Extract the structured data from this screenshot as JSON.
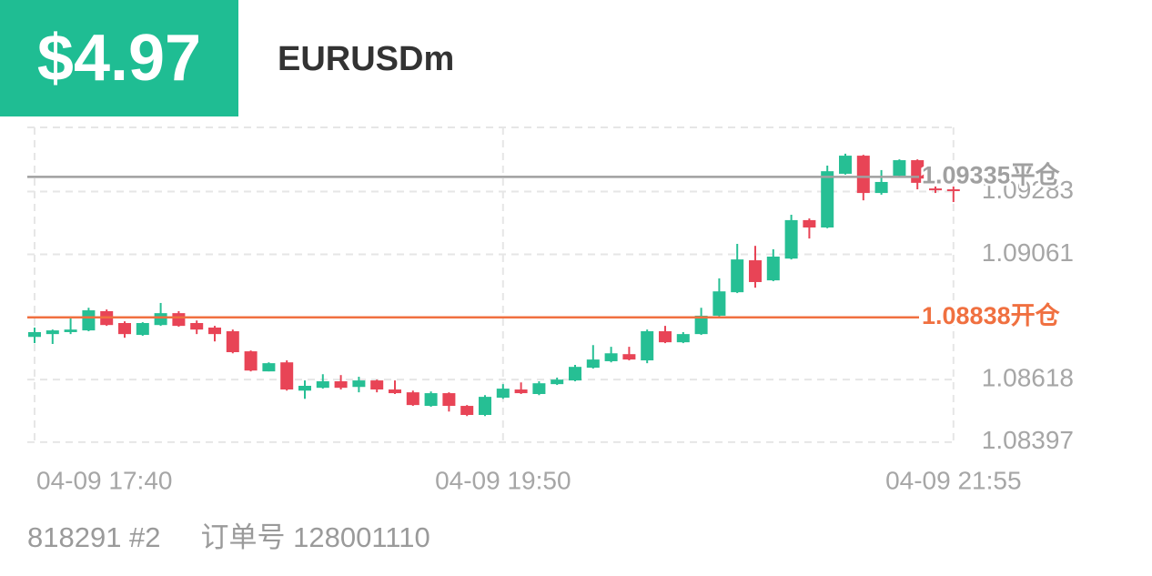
{
  "header": {
    "profit": "$4.97",
    "symbol": "EURUSDm"
  },
  "footer": {
    "account": "818291 #2",
    "order": "订单号 128001110"
  },
  "chart_data": {
    "type": "candlestick",
    "categories": [
      "04-09 17:40",
      null,
      null,
      null,
      null,
      null,
      null,
      null,
      null,
      null,
      null,
      null,
      null,
      null,
      null,
      null,
      null,
      null,
      null,
      null,
      null,
      null,
      null,
      null,
      null,
      null,
      "04-09 19:50",
      null,
      null,
      null,
      null,
      null,
      null,
      null,
      null,
      null,
      null,
      null,
      null,
      null,
      null,
      null,
      null,
      null,
      null,
      null,
      null,
      null,
      null,
      null,
      null,
      "04-09 21:55"
    ],
    "open": [
      1.08769,
      1.08779,
      1.08786,
      1.08792,
      1.0886,
      1.08818,
      1.08776,
      1.08811,
      1.08853,
      1.08818,
      1.08802,
      1.08789,
      1.08718,
      1.08647,
      1.08679,
      1.08579,
      1.08589,
      1.08612,
      1.08592,
      1.08615,
      1.08583,
      1.08573,
      1.08525,
      1.0857,
      1.08525,
      1.08493,
      1.08554,
      1.08583,
      1.08567,
      1.08602,
      1.08615,
      1.0866,
      1.08683,
      1.08708,
      1.08686,
      1.08789,
      1.0875,
      1.08779,
      1.08844,
      1.08927,
      1.0904,
      1.08969,
      1.09046,
      1.09182,
      1.09156,
      1.09346,
      1.0941,
      1.09278,
      1.09339,
      1.09394,
      1.09294,
      1.09291
    ],
    "high": [
      1.08802,
      1.08795,
      1.08834,
      1.08872,
      1.08866,
      1.08824,
      1.08821,
      1.08889,
      1.0886,
      1.08827,
      1.08808,
      1.08795,
      1.08721,
      1.08679,
      1.08686,
      1.08615,
      1.08637,
      1.08634,
      1.08628,
      1.08618,
      1.08615,
      1.08579,
      1.08576,
      1.08573,
      1.08528,
      1.08563,
      1.08602,
      1.08608,
      1.08612,
      1.08625,
      1.0867,
      1.0874,
      1.08734,
      1.08734,
      1.08795,
      1.08808,
      1.08786,
      1.08872,
      1.08976,
      1.09098,
      1.09091,
      1.09079,
      1.09201,
      1.09188,
      1.09375,
      1.09417,
      1.09413,
      1.09359,
      1.09397,
      1.09397,
      1.09301,
      1.09301
    ],
    "low": [
      1.08747,
      1.08744,
      1.08779,
      1.08789,
      1.08808,
      1.08766,
      1.08773,
      1.08808,
      1.08805,
      1.08779,
      1.08753,
      1.08711,
      1.08647,
      1.08647,
      1.08579,
      1.0855,
      1.08586,
      1.08583,
      1.08573,
      1.08573,
      1.08567,
      1.08525,
      1.08522,
      1.08505,
      1.08489,
      1.08489,
      1.0855,
      1.08567,
      1.08563,
      1.08599,
      1.08612,
      1.08657,
      1.08679,
      1.08686,
      1.08676,
      1.08747,
      1.08747,
      1.08776,
      1.0884,
      1.08924,
      1.08943,
      1.08966,
      1.09043,
      1.09117,
      1.09153,
      1.09343,
      1.09252,
      1.09272,
      1.09336,
      1.09291,
      1.09278,
      1.09246
    ],
    "close": [
      1.08786,
      1.08792,
      1.08795,
      1.08863,
      1.08811,
      1.08779,
      1.08818,
      1.08853,
      1.08808,
      1.08795,
      1.08779,
      1.08715,
      1.0865,
      1.08676,
      1.08583,
      1.08596,
      1.08612,
      1.08589,
      1.08615,
      1.08583,
      1.0857,
      1.08528,
      1.0857,
      1.08525,
      1.08493,
      1.08557,
      1.08586,
      1.0857,
      1.08605,
      1.08618,
      1.08663,
      1.08689,
      1.08711,
      1.08689,
      1.08789,
      1.0875,
      1.08779,
      1.08844,
      1.0893,
      1.09043,
      1.08963,
      1.09053,
      1.09182,
      1.09156,
      1.09355,
      1.0941,
      1.09278,
      1.09317,
      1.09394,
      1.09314,
      1.09288,
      1.09288
    ],
    "up_color": "#26bf94",
    "down_color": "#e84456",
    "ylim": [
      1.0839,
      1.0951
    ],
    "yticks": [
      1.08397,
      1.08618,
      1.09061,
      1.09283
    ],
    "grid": true,
    "lines": [
      {
        "value": 1.09335,
        "label": "平仓",
        "color": "#a0a0a0"
      },
      {
        "value": 1.08838,
        "label": "开仓",
        "color": "#f07040"
      }
    ]
  }
}
